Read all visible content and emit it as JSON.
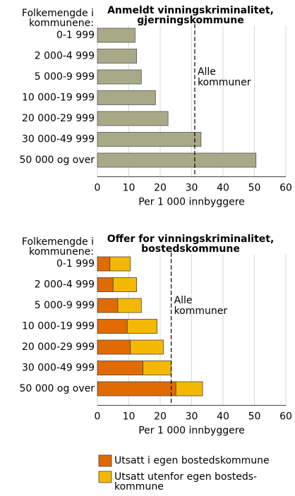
{
  "chart_data": [
    {
      "type": "bar",
      "orientation": "horizontal",
      "title": "Anmeldt vinningskriminalitet, gjerningskommune",
      "category_header": "Folkemengde i kommunene:",
      "categories": [
        "0-1 999",
        "2 000-4 999",
        "5 000-9 999",
        "10 000-19 999",
        "20 000-29 999",
        "30 000-49 999",
        "50 000 og over"
      ],
      "values": [
        12,
        12.5,
        14,
        18.5,
        22.5,
        33,
        50.5
      ],
      "color": "#a8a987",
      "reference_line": {
        "value": 31,
        "label": "Alle kommuner"
      },
      "xlim": [
        0,
        60
      ],
      "xticks": [
        0,
        10,
        20,
        30,
        40,
        50,
        60
      ],
      "xlabel": "Per 1 000 innbyggere",
      "grid": true
    },
    {
      "type": "stacked_bar",
      "orientation": "horizontal",
      "title": "Offer for vinningskriminalitet, bostedskommune",
      "category_header": "Folkemengde i kommunene:",
      "categories": [
        "0-1 999",
        "2 000-4 999",
        "5 000-9 999",
        "10 000-19 999",
        "20 000-29 999",
        "30 000-49 999",
        "50 000 og over"
      ],
      "series": [
        {
          "name": "Utsatt i egen bostedskommune",
          "color": "#e06b00",
          "values": [
            4,
            5,
            6.5,
            9.5,
            10.5,
            14.5,
            25
          ]
        },
        {
          "name": "Utsatt utenfor egen bosteds-kommune",
          "color": "#f5b800",
          "values": [
            6.5,
            7.5,
            7.5,
            9.5,
            10.5,
            9,
            8.5
          ]
        }
      ],
      "reference_line": {
        "value": 23.5,
        "label": "Alle kommuner"
      },
      "xlim": [
        0,
        60
      ],
      "xticks": [
        0,
        10,
        20,
        30,
        40,
        50,
        60
      ],
      "xlabel": "Per 1 000 innbyggere",
      "grid": true
    }
  ]
}
